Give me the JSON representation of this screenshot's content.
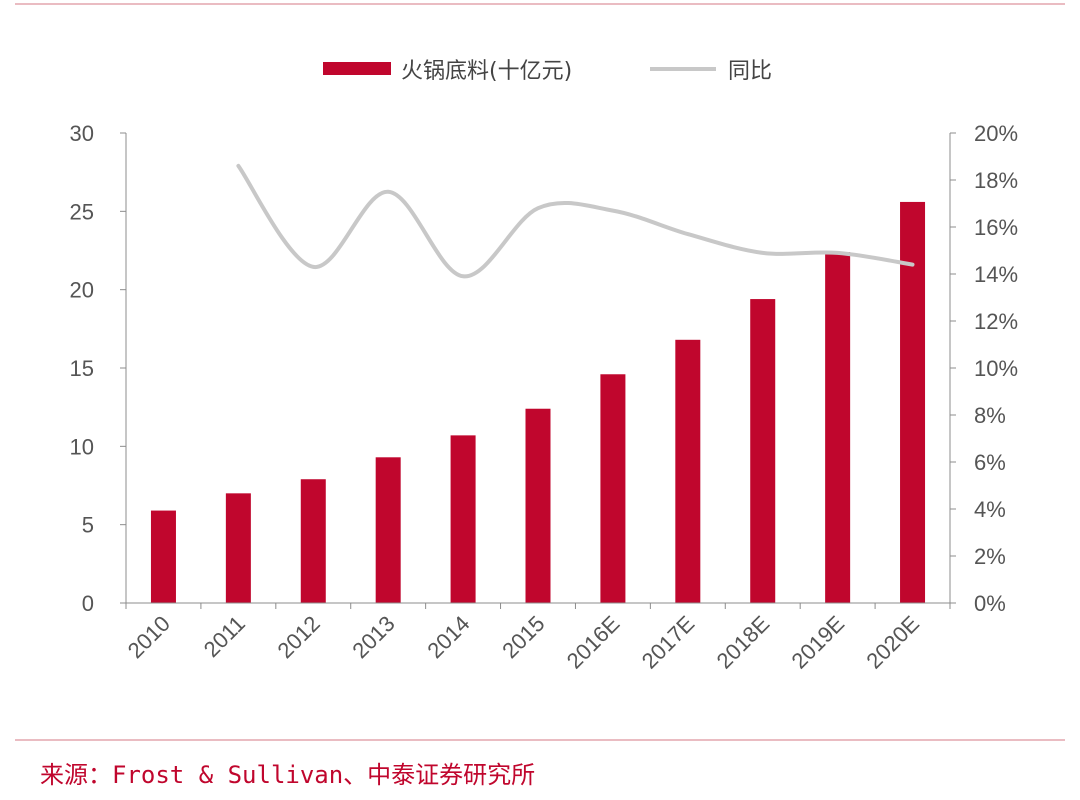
{
  "chart_data": {
    "type": "bar",
    "categories": [
      "2010",
      "2011",
      "2012",
      "2013",
      "2014",
      "2015",
      "2016E",
      "2017E",
      "2018E",
      "2019E",
      "2020E"
    ],
    "series": [
      {
        "name": "火锅底料(十亿元)",
        "type": "bar",
        "axis": "left",
        "color": "#c0062d",
        "values": [
          5.9,
          7.0,
          7.9,
          9.3,
          10.7,
          12.4,
          14.6,
          16.8,
          19.4,
          22.4,
          25.6
        ]
      },
      {
        "name": "同比",
        "type": "line",
        "axis": "right",
        "color": "#c8c8c8",
        "values": [
          null,
          18.6,
          14.3,
          17.5,
          13.9,
          16.8,
          16.7,
          15.7,
          14.9,
          14.9,
          14.4
        ]
      }
    ],
    "y_left": {
      "min": 0,
      "max": 30,
      "ticks": [
        0,
        5,
        10,
        15,
        20,
        25,
        30
      ]
    },
    "y_right": {
      "min": 0,
      "max": 20,
      "ticks": [
        "0%",
        "2%",
        "4%",
        "6%",
        "8%",
        "10%",
        "12%",
        "14%",
        "16%",
        "18%",
        "20%"
      ]
    },
    "legend_position": "top-center",
    "grid": false
  },
  "source": "来源：Frost & Sullivan、中泰证券研究所",
  "colors": {
    "accent": "#c0062d",
    "rule": "#e3a5ad",
    "axis": "#8c8c8c",
    "line": "#c8c8c8"
  }
}
